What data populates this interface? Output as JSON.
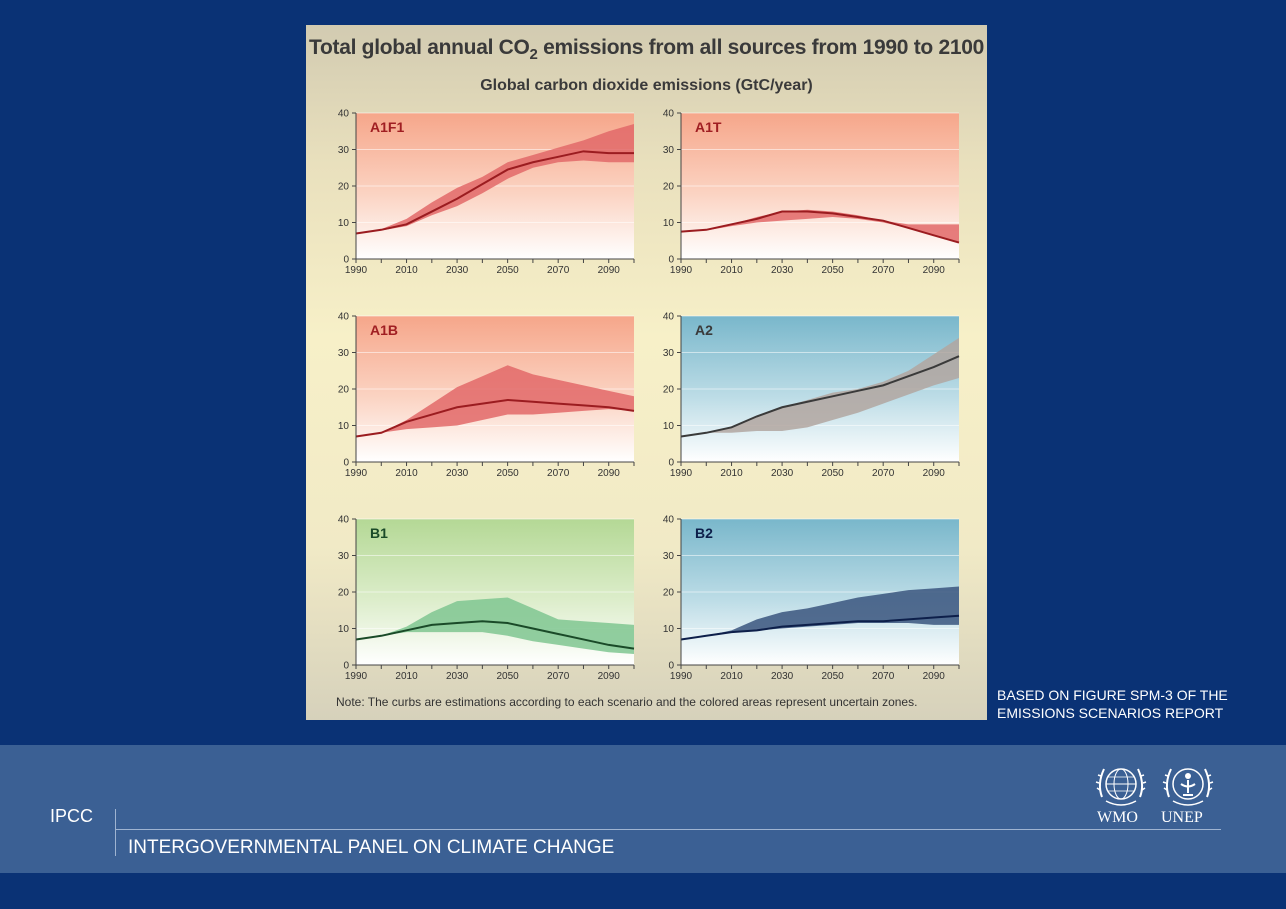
{
  "figure": {
    "title_main": "Total global annual CO",
    "title_sub": "2",
    "title_rest": " emissions from all sources from 1990 to 2100",
    "subtitle": "Global carbon dioxide emissions (GtC/year)",
    "note": "Note: The curbs are estimations according to each scenario and the colored areas represent uncertain zones."
  },
  "source": {
    "line1": "BASED ON FIGURE SPM-3 OF THE",
    "line2": "EMISSIONS SCENARIOS REPORT"
  },
  "footer": {
    "acronym": "IPCC",
    "full_name": "INTERGOVERNMENTAL PANEL ON CLIMATE CHANGE",
    "logos": [
      {
        "label": "WMO",
        "icon": "globe-wreath-icon"
      },
      {
        "label": "UNEP",
        "icon": "unep-emblem-icon"
      }
    ]
  },
  "colors": {
    "background": "#0a3275",
    "footer": "#3b6094",
    "red_line": "#9b1c20",
    "red_band": "#e26868",
    "dark_line": "#3a3a3a",
    "grey_band": "#b2a6a0",
    "green_line": "#1a4a28",
    "green_band": "#7fc690",
    "navy_line": "#0d1f4a",
    "navy_band": "#3a557e"
  },
  "chart_data": [
    {
      "type": "area",
      "label": "A1F1",
      "label_color": "#a01e22",
      "theme": "red",
      "x_ticks": [
        1990,
        2010,
        2030,
        2050,
        2070,
        2090
      ],
      "y_ticks": [
        0,
        10,
        20,
        30,
        40
      ],
      "xlim": [
        1990,
        2100
      ],
      "ylim": [
        0,
        40
      ],
      "grid": true,
      "x": [
        1990,
        2000,
        2010,
        2020,
        2030,
        2040,
        2050,
        2060,
        2070,
        2080,
        2090,
        2100
      ],
      "line": [
        7,
        8,
        9.5,
        13,
        16.5,
        20.5,
        24.5,
        26.5,
        28,
        29.5,
        29,
        29
      ],
      "upper": [
        7,
        8.2,
        11,
        15.5,
        19.5,
        22.5,
        26.5,
        28.5,
        30.5,
        32.5,
        35,
        37
      ],
      "lower": [
        7,
        7.8,
        9,
        12,
        14.5,
        18,
        22,
        25,
        26.5,
        27,
        26.5,
        26.5
      ],
      "line_color": "#9b1c20",
      "band_color": "#e26868"
    },
    {
      "type": "area",
      "label": "A1T",
      "label_color": "#a01e22",
      "theme": "red",
      "x_ticks": [
        1990,
        2010,
        2030,
        2050,
        2070,
        2090
      ],
      "y_ticks": [
        0,
        10,
        20,
        30,
        40
      ],
      "xlim": [
        1990,
        2100
      ],
      "ylim": [
        0,
        40
      ],
      "grid": true,
      "x": [
        1990,
        2000,
        2010,
        2020,
        2030,
        2040,
        2050,
        2060,
        2070,
        2080,
        2090,
        2100
      ],
      "line": [
        7.5,
        8,
        9.5,
        11,
        13,
        13,
        12.5,
        11.5,
        10.5,
        8.5,
        6.5,
        4.5
      ],
      "upper": [
        7.5,
        8.2,
        9.5,
        11.5,
        13,
        13.5,
        13,
        12,
        10.5,
        9.5,
        9.5,
        9.5
      ],
      "lower": [
        7.5,
        7.8,
        9,
        10,
        10.5,
        11,
        11.5,
        11,
        10,
        8.5,
        6.5,
        4.5
      ],
      "line_color": "#9b1c20",
      "band_color": "#e26868"
    },
    {
      "type": "area",
      "label": "A1B",
      "label_color": "#a01e22",
      "theme": "red",
      "x_ticks": [
        1990,
        2010,
        2030,
        2050,
        2070,
        2090
      ],
      "y_ticks": [
        0,
        10,
        20,
        30,
        40
      ],
      "xlim": [
        1990,
        2100
      ],
      "ylim": [
        0,
        40
      ],
      "grid": true,
      "x": [
        1990,
        2000,
        2010,
        2020,
        2030,
        2040,
        2050,
        2060,
        2070,
        2080,
        2090,
        2100
      ],
      "line": [
        7,
        8,
        11,
        13,
        15,
        16,
        17,
        16.5,
        16,
        15.5,
        15,
        14
      ],
      "upper": [
        7,
        8,
        11.5,
        16,
        20.5,
        23.5,
        26.5,
        24,
        22.5,
        21,
        19.5,
        18
      ],
      "lower": [
        7,
        8,
        9,
        9.5,
        10,
        11.5,
        13,
        13,
        13.5,
        14,
        14.5,
        14
      ],
      "line_color": "#9b1c20",
      "band_color": "#e26868"
    },
    {
      "type": "area",
      "label": "A2",
      "label_color": "#3a3a3a",
      "theme": "blue",
      "x_ticks": [
        1990,
        2010,
        2030,
        2050,
        2070,
        2090
      ],
      "y_ticks": [
        0,
        10,
        20,
        30,
        40
      ],
      "xlim": [
        1990,
        2100
      ],
      "ylim": [
        0,
        40
      ],
      "grid": true,
      "x": [
        1990,
        2000,
        2010,
        2020,
        2030,
        2040,
        2050,
        2060,
        2070,
        2080,
        2090,
        2100
      ],
      "line": [
        7,
        8,
        9.5,
        12.5,
        15,
        16.5,
        18,
        19.5,
        21,
        23.5,
        26,
        29
      ],
      "upper": [
        7,
        8,
        9.5,
        12.5,
        15,
        17,
        19,
        20,
        22,
        25,
        29.5,
        34
      ],
      "lower": [
        7,
        8,
        8,
        8.5,
        8.5,
        9.5,
        11.5,
        13.5,
        16,
        18.5,
        21,
        23
      ],
      "line_color": "#3a3a3a",
      "band_color": "#b2a6a0"
    },
    {
      "type": "area",
      "label": "B1",
      "label_color": "#1a4a28",
      "theme": "green",
      "x_ticks": [
        1990,
        2010,
        2030,
        2050,
        2070,
        2090
      ],
      "y_ticks": [
        0,
        10,
        20,
        30,
        40
      ],
      "xlim": [
        1990,
        2100
      ],
      "ylim": [
        0,
        40
      ],
      "grid": true,
      "x": [
        1990,
        2000,
        2010,
        2020,
        2030,
        2040,
        2050,
        2060,
        2070,
        2080,
        2090,
        2100
      ],
      "line": [
        7,
        8,
        9.5,
        11,
        11.5,
        12,
        11.5,
        10,
        8.5,
        7,
        5.5,
        4.5
      ],
      "upper": [
        7,
        8,
        10.5,
        14.5,
        17.5,
        18,
        18.5,
        15.5,
        12.5,
        12,
        11.5,
        11
      ],
      "lower": [
        7,
        8,
        9,
        9,
        9,
        9,
        8,
        6.5,
        5.5,
        4.5,
        3.5,
        3
      ],
      "line_color": "#1a4a28",
      "band_color": "#7fc690"
    },
    {
      "type": "area",
      "label": "B2",
      "label_color": "#0d1f4a",
      "theme": "blue",
      "x_ticks": [
        1990,
        2010,
        2030,
        2050,
        2070,
        2090
      ],
      "y_ticks": [
        0,
        10,
        20,
        30,
        40
      ],
      "xlim": [
        1990,
        2100
      ],
      "ylim": [
        0,
        40
      ],
      "grid": true,
      "x": [
        1990,
        2000,
        2010,
        2020,
        2030,
        2040,
        2050,
        2060,
        2070,
        2080,
        2090,
        2100
      ],
      "line": [
        7,
        8,
        9,
        9.5,
        10.5,
        11,
        11.5,
        12,
        12,
        12.5,
        13,
        13.5
      ],
      "upper": [
        7,
        8,
        9.5,
        12.5,
        14.5,
        15.5,
        17,
        18.5,
        19.5,
        20.5,
        21,
        21.5
      ],
      "lower": [
        7,
        8,
        9,
        9.5,
        10,
        10.5,
        11,
        11.5,
        11.5,
        11.5,
        11,
        11
      ],
      "line_color": "#0d1f4a",
      "band_color": "#3a557e"
    }
  ]
}
